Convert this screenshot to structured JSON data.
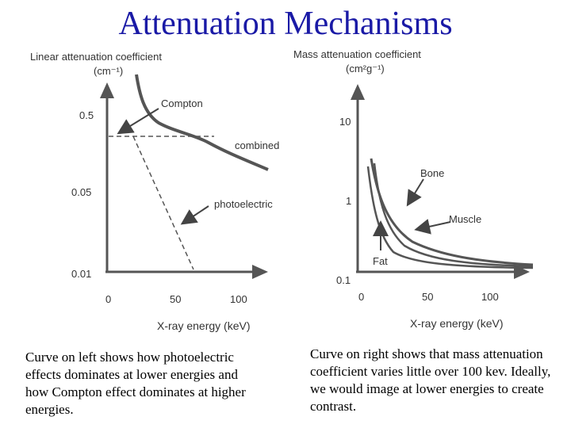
{
  "slide": {
    "title": "Attenuation Mechanisms"
  },
  "left_graph": {
    "y_title_line1": "Linear attenuation coefficient",
    "y_title_line2": "(cm⁻¹)",
    "y_ticks": [
      "0.5",
      "0.05",
      "0.01"
    ],
    "x_ticks": [
      "0",
      "50",
      "100"
    ],
    "x_title": "X-ray energy (keV)",
    "curve_labels": {
      "compton": "Compton",
      "combined": "combined",
      "photoelectric": "photoelectric"
    }
  },
  "right_graph": {
    "y_title_line1": "Mass attenuation coefficient",
    "y_title_line2": "(cm²g⁻¹)",
    "y_ticks": [
      "10",
      "1",
      "0.1"
    ],
    "x_ticks": [
      "0",
      "50",
      "100"
    ],
    "x_title": "X-ray energy (keV)",
    "curve_labels": {
      "bone": "Bone",
      "muscle": "Muscle",
      "fat": "Fat"
    }
  },
  "captions": {
    "left": "Curve on left shows how photoelectric effects dominates at lower energies and how Compton effect dominates at higher energies.",
    "right": "Curve on right shows that mass attenuation coefficient varies little over 100 kev.  Ideally, we would image at lower energies to create contrast."
  }
}
